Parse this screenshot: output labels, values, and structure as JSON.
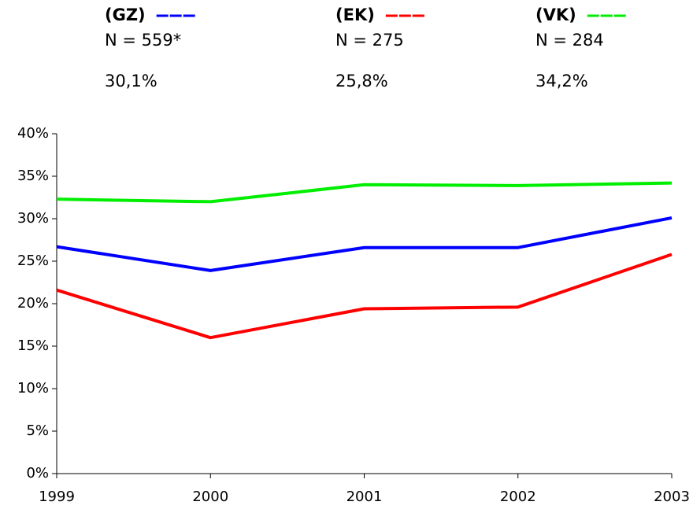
{
  "chart_data": {
    "type": "line",
    "x": [
      1999,
      2000,
      2001,
      2002,
      2003
    ],
    "xlim": [
      1999,
      2003
    ],
    "xticks": [
      1999,
      2000,
      2001,
      2002,
      2003
    ],
    "ylim": [
      0,
      40
    ],
    "yticks": [
      {
        "value": 0,
        "label": "0%"
      },
      {
        "value": 5,
        "label": "5%"
      },
      {
        "value": 10,
        "label": "10%"
      },
      {
        "value": 15,
        "label": "15%"
      },
      {
        "value": 20,
        "label": "20%"
      },
      {
        "value": 25,
        "label": "25%"
      },
      {
        "value": 30,
        "label": "30%"
      },
      {
        "value": 35,
        "label": "35%"
      },
      {
        "value": 40,
        "label": "40%"
      }
    ],
    "grid": false,
    "series": [
      {
        "name": "(GZ)",
        "color": "#0000ff",
        "n_label": "N = 559*",
        "summary": "30,1%",
        "values": [
          26.7,
          23.9,
          26.6,
          26.6,
          30.1
        ]
      },
      {
        "name": "(EK)",
        "color": "#ff0000",
        "n_label": "N = 275",
        "summary": "25,8%",
        "values": [
          21.6,
          16.0,
          19.4,
          19.6,
          25.8
        ]
      },
      {
        "name": "(VK)",
        "color": "#00ee00",
        "n_label": "N = 284",
        "summary": "34,2%",
        "values": [
          32.3,
          32.0,
          34.0,
          33.9,
          34.2
        ]
      }
    ]
  }
}
